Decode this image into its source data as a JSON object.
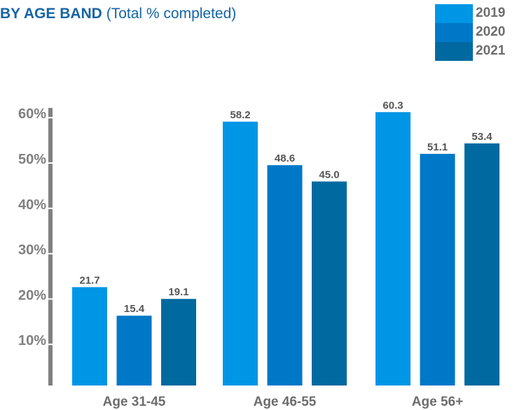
{
  "header": {
    "title_bold": "BY AGE BAND",
    "title_rest": "(Total % completed)"
  },
  "colors": {
    "2019": "#0096e6",
    "2020": "#0078c8",
    "2021": "#006aa0",
    "axis": "#808080",
    "title": "#1565a6"
  },
  "legend": [
    {
      "label": "2019",
      "color": "#0096e6"
    },
    {
      "label": "2020",
      "color": "#0078c8"
    },
    {
      "label": "2021",
      "color": "#006aa0"
    }
  ],
  "chart_data": {
    "type": "bar",
    "title": "BY AGE BAND (Total % completed)",
    "categories": [
      "Age 31-45",
      "Age 46-55",
      "Age 56+"
    ],
    "series": [
      {
        "name": "2019",
        "values": [
          21.7,
          58.2,
          60.3
        ]
      },
      {
        "name": "2020",
        "values": [
          15.4,
          48.6,
          51.1
        ]
      },
      {
        "name": "2021",
        "values": [
          19.1,
          45.0,
          53.4
        ]
      }
    ],
    "value_labels": [
      [
        "21.7",
        "58.2",
        "60.3"
      ],
      [
        "15.4",
        "48.6",
        "51.1"
      ],
      [
        "19.1",
        "45.0",
        "53.4"
      ]
    ],
    "yticks": [
      "10%",
      "20%",
      "30%",
      "40%",
      "50%",
      "60%"
    ],
    "ytick_values": [
      10,
      20,
      30,
      40,
      50,
      60
    ],
    "ylim": [
      0,
      60
    ],
    "xlabel": "",
    "ylabel": "",
    "legend_position": "top-right",
    "grid": false
  }
}
